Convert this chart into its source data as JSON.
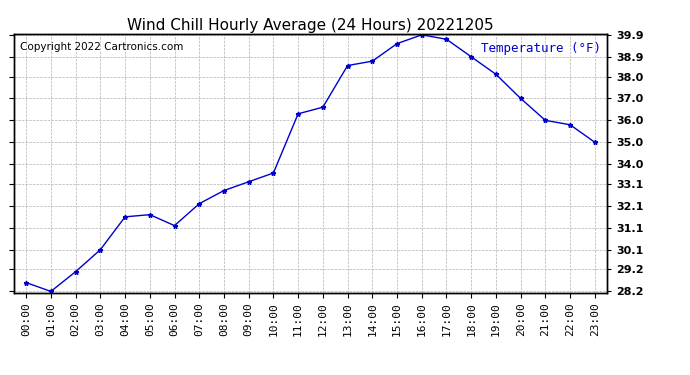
{
  "title": "Wind Chill Hourly Average (24 Hours) 20221205",
  "copyright": "Copyright 2022 Cartronics.com",
  "ylabel": "Temperature (°F)",
  "hours": [
    "00:00",
    "01:00",
    "02:00",
    "03:00",
    "04:00",
    "05:00",
    "06:00",
    "07:00",
    "08:00",
    "09:00",
    "10:00",
    "11:00",
    "12:00",
    "13:00",
    "14:00",
    "15:00",
    "16:00",
    "17:00",
    "18:00",
    "19:00",
    "20:00",
    "21:00",
    "22:00",
    "23:00"
  ],
  "values": [
    28.6,
    28.2,
    29.1,
    30.1,
    31.6,
    31.7,
    31.2,
    32.2,
    32.8,
    33.2,
    33.6,
    36.3,
    36.6,
    38.5,
    38.7,
    39.5,
    39.9,
    39.7,
    38.9,
    38.1,
    37.0,
    36.0,
    35.8,
    35.0
  ],
  "ylim_min": 28.2,
  "ylim_max": 39.9,
  "yticks": [
    28.2,
    29.2,
    30.1,
    31.1,
    32.1,
    33.1,
    34.0,
    35.0,
    36.0,
    37.0,
    38.0,
    38.9,
    39.9
  ],
  "line_color": "#0000cc",
  "marker": "*",
  "grid_color": "#aaaaaa",
  "background_color": "#ffffff",
  "title_color": "#000000",
  "ylabel_color": "#0000cc",
  "copyright_color": "#000000",
  "title_fontsize": 11,
  "ylabel_fontsize": 9,
  "copyright_fontsize": 7.5,
  "tick_fontsize": 8,
  "border_color": "#000066"
}
